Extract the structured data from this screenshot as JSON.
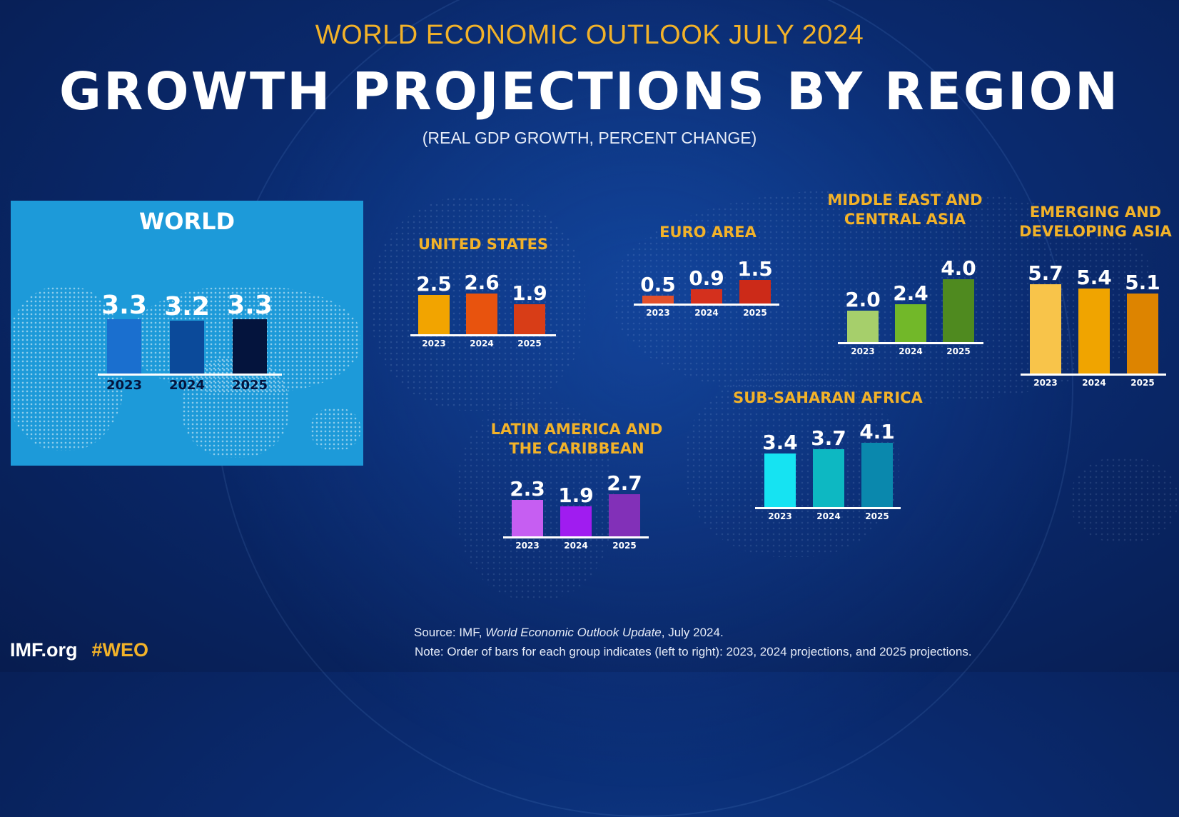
{
  "header": {
    "kicker": "WORLD ECONOMIC OUTLOOK JULY 2024",
    "title": "GROWTH PROJECTIONS BY REGION",
    "subtitle": "(REAL GDP GROWTH, PERCENT CHANGE)"
  },
  "footer": {
    "brand": "IMF.org",
    "hashtag": "#WEO",
    "source_prefix": "Source:  IMF, ",
    "source_title": "World Economic Outlook Update",
    "source_suffix": ", July 2024.",
    "note": "Note:  Order of bars for each group indicates (left to right): 2023, 2024 projections, and 2025 projections."
  },
  "colors": {
    "accent_gold": "#f2b229",
    "background": "#0a2a6e",
    "world_panel": "#1d9ad9"
  },
  "chart_data": [
    {
      "type": "bar",
      "title": "WORLD",
      "categories": [
        "2023",
        "2024",
        "2025"
      ],
      "values": [
        3.3,
        3.2,
        3.3
      ],
      "colors": [
        "#1a6fcf",
        "#0b4a9a",
        "#04143d"
      ]
    },
    {
      "type": "bar",
      "title": "UNITED STATES",
      "categories": [
        "2023",
        "2024",
        "2025"
      ],
      "values": [
        2.5,
        2.6,
        1.9
      ],
      "colors": [
        "#f2a400",
        "#e8530e",
        "#d83d17"
      ]
    },
    {
      "type": "bar",
      "title": "EURO AREA",
      "categories": [
        "2023",
        "2024",
        "2025"
      ],
      "values": [
        0.5,
        0.9,
        1.5
      ],
      "colors": [
        "#e2502b",
        "#d4301d",
        "#cc2a18"
      ]
    },
    {
      "type": "bar",
      "title": "MIDDLE EAST AND CENTRAL ASIA",
      "categories": [
        "2023",
        "2024",
        "2025"
      ],
      "values": [
        2.0,
        2.4,
        4.0
      ],
      "colors": [
        "#a6cf6b",
        "#72b829",
        "#4f8a1f"
      ]
    },
    {
      "type": "bar",
      "title": "EMERGING AND DEVELOPING ASIA",
      "categories": [
        "2023",
        "2024",
        "2025"
      ],
      "values": [
        5.7,
        5.4,
        5.1
      ],
      "colors": [
        "#f8c44a",
        "#f0a400",
        "#dd8400"
      ]
    },
    {
      "type": "bar",
      "title": "LATIN AMERICA AND THE CARIBBEAN",
      "categories": [
        "2023",
        "2024",
        "2025"
      ],
      "values": [
        2.3,
        1.9,
        2.7
      ],
      "colors": [
        "#c65ef2",
        "#a01cf0",
        "#8230b8"
      ]
    },
    {
      "type": "bar",
      "title": "SUB-SAHARAN AFRICA",
      "categories": [
        "2023",
        "2024",
        "2025"
      ],
      "values": [
        3.4,
        3.7,
        4.1
      ],
      "colors": [
        "#16e3f2",
        "#0db8c2",
        "#0a88ad"
      ]
    }
  ]
}
